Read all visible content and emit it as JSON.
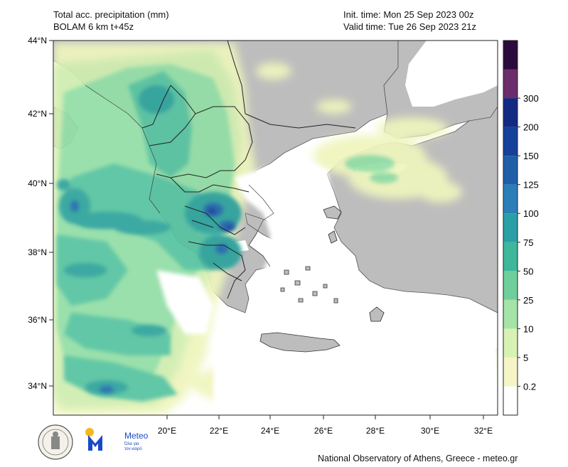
{
  "header": {
    "title_line1": "Total acc. precipitation (mm)",
    "title_line2": "BOLAM 6 km t+45z",
    "init_time": "Init. time: Mon 25 Sep 2023 00z",
    "valid_time": "Valid time: Tue 26 Sep 2023 21z"
  },
  "map": {
    "lat_labels": [
      "44°N",
      "42°N",
      "40°N",
      "38°N",
      "36°N",
      "34°N"
    ],
    "lon_labels": [
      "20°E",
      "22°E",
      "24°E",
      "26°E",
      "28°E",
      "30°E",
      "32°E"
    ],
    "land_color": "#bdbdbd",
    "sea_color": "#ffffff",
    "border_color": "#333333"
  },
  "colorbar": {
    "labels": [
      "300",
      "200",
      "150",
      "125",
      "100",
      "75",
      "50",
      "25",
      "10",
      "5",
      "0.2"
    ],
    "colors": [
      "#ffffff",
      "#f5f5c8",
      "#d8f2b4",
      "#a6e3a6",
      "#6fcf9c",
      "#3fb79a",
      "#2a9fa6",
      "#2b7fb8",
      "#1f5fa8",
      "#17409a",
      "#122a82",
      "#6b2d6b",
      "#2b0a3d"
    ]
  },
  "footer": {
    "credit": "National Observatory of Athens, Greece - meteo.gr",
    "logo_text": "Meteo",
    "logo_sub_1": "Όλα για",
    "logo_sub_2": "τον καιρό"
  }
}
